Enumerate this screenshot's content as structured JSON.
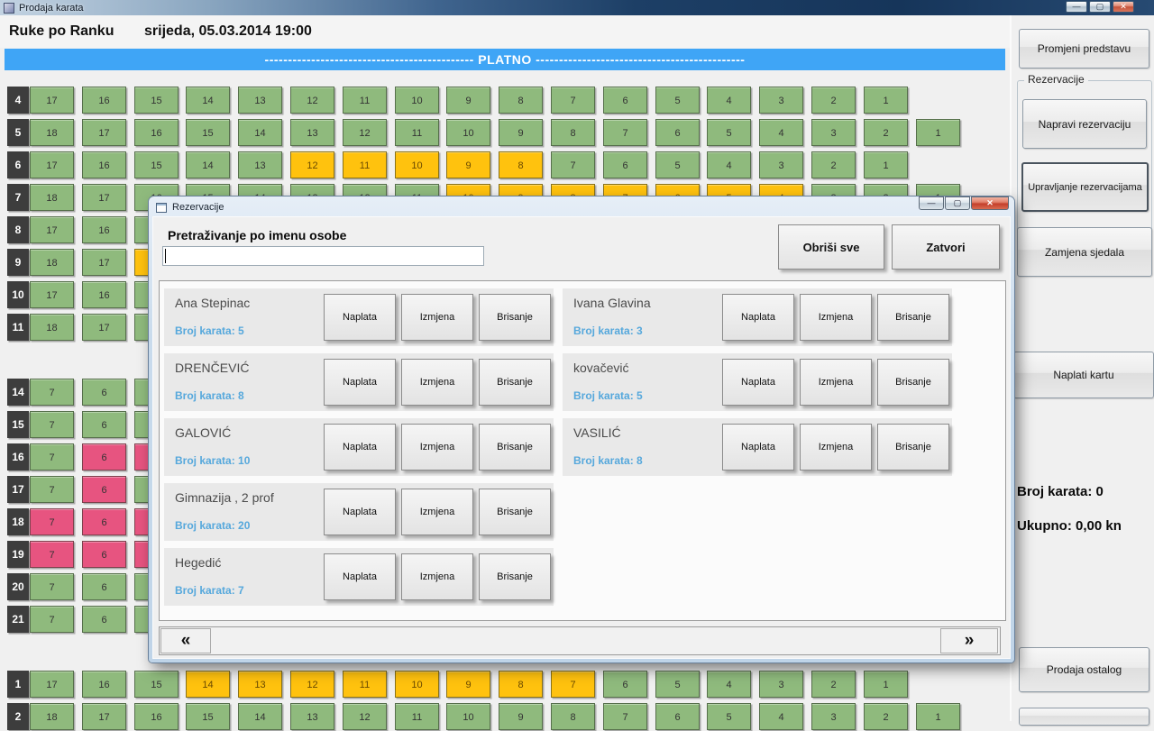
{
  "window": {
    "title": "Prodaja karata",
    "minimize_glyph": "—",
    "maximize_glyph": "▢",
    "close_glyph": "✕"
  },
  "header": {
    "show_title": "Ruke po Ranku",
    "show_datetime": "srijeda, 05.03.2014 19:00"
  },
  "screen_banner": {
    "text": "--------------------------------------------- PLATNO ---------------------------------------------",
    "color": "#3fa5f6"
  },
  "seat_colors": {
    "free": "#8fba7d",
    "reserved": "#ffc20e",
    "sold": "#e75480"
  },
  "seat_map": {
    "rows": [
      {
        "label": "4",
        "gap_before": false,
        "seats": [
          "17:g",
          "16:g",
          "15:g",
          "14:g",
          "13:g",
          "12:g",
          "11:g",
          "10:g",
          "9:g",
          "8:g",
          "7:g",
          "6:g",
          "5:g",
          "4:g",
          "3:g",
          "2:g",
          "1:g"
        ]
      },
      {
        "label": "5",
        "gap_before": false,
        "seats": [
          "18:g",
          "17:g",
          "16:g",
          "15:g",
          "14:g",
          "13:g",
          "12:g",
          "11:g",
          "10:g",
          "9:g",
          "8:g",
          "7:g",
          "6:g",
          "5:g",
          "4:g",
          "3:g",
          "2:g",
          "1:g"
        ]
      },
      {
        "label": "6",
        "gap_before": false,
        "seats": [
          "17:g",
          "16:g",
          "15:g",
          "14:g",
          "13:g",
          "12:y",
          "11:y",
          "10:y",
          "9:y",
          "8:y",
          "7:g",
          "6:g",
          "5:g",
          "4:g",
          "3:g",
          "2:g",
          "1:g"
        ]
      },
      {
        "label": "7",
        "gap_before": false,
        "seats": [
          "18:g",
          "17:g",
          "16:g",
          "15:g",
          "14:g",
          "13:g",
          "12:g",
          "11:g",
          "10:y",
          "9:y",
          "8:y",
          "7:y",
          "6:y",
          "5:y",
          "4:y",
          "3:g",
          "2:g",
          "1:g"
        ]
      },
      {
        "label": "8",
        "gap_before": false,
        "seats": [
          "17:g",
          "16:g",
          "15:g"
        ]
      },
      {
        "label": "9",
        "gap_before": false,
        "seats": [
          "18:g",
          "17:g",
          "16:y"
        ]
      },
      {
        "label": "10",
        "gap_before": false,
        "seats": [
          "17:g",
          "16:g",
          "15:g"
        ]
      },
      {
        "label": "11",
        "gap_before": false,
        "seats": [
          "18:g",
          "17:g",
          "16:g"
        ]
      },
      {
        "label": "14",
        "gap_before": true,
        "seats": [
          "7:g",
          "6:g",
          "5:g"
        ]
      },
      {
        "label": "15",
        "gap_before": false,
        "seats": [
          "7:g",
          "6:g",
          "5:g"
        ]
      },
      {
        "label": "16",
        "gap_before": false,
        "seats": [
          "7:g",
          "6:p",
          "5:p"
        ]
      },
      {
        "label": "17",
        "gap_before": false,
        "seats": [
          "7:g",
          "6:p",
          "5:g"
        ]
      },
      {
        "label": "18",
        "gap_before": false,
        "seats": [
          "7:p",
          "6:p",
          "5:p"
        ]
      },
      {
        "label": "19",
        "gap_before": false,
        "seats": [
          "7:p",
          "6:p",
          "5:p"
        ]
      },
      {
        "label": "20",
        "gap_before": false,
        "seats": [
          "7:g",
          "6:g",
          "5:g"
        ]
      },
      {
        "label": "21",
        "gap_before": false,
        "seats": [
          "7:g",
          "6:g",
          "5:g"
        ]
      },
      {
        "label": "1",
        "gap_before": true,
        "seats": [
          "17:g",
          "16:g",
          "15:g",
          "14:y",
          "13:y",
          "12:y",
          "11:y",
          "10:y",
          "9:y",
          "8:y",
          "7:y",
          "6:g",
          "5:g",
          "4:g",
          "3:g",
          "2:g",
          "1:g"
        ]
      },
      {
        "label": "2",
        "gap_before": false,
        "seats": [
          "18:g",
          "17:g",
          "16:g",
          "15:g",
          "14:g",
          "13:g",
          "12:g",
          "11:g",
          "10:g",
          "9:g",
          "8:g",
          "7:g",
          "6:g",
          "5:g",
          "4:g",
          "3:g",
          "2:g",
          "1:g"
        ]
      }
    ]
  },
  "sidebar": {
    "change_show": "Promjeni predstavu",
    "reservations_group": "Rezervacije",
    "make_reservation": "Napravi rezervaciju",
    "manage_reservations": "Upravljanje rezervacijama",
    "swap_seats": "Zamjena sjedala",
    "charge_ticket": "Naplati kartu",
    "ticket_count": "Broj karata: 0",
    "total": "Ukupno: 0,00 kn",
    "sell_other": "Prodaja ostalog"
  },
  "dialog": {
    "title": "Rezervacije",
    "minimize_glyph": "—",
    "maximize_glyph": "▢",
    "close_glyph": "✕",
    "search_label": "Pretraživanje po imenu osobe",
    "search_value": "",
    "clear_all": "Obriši sve",
    "close": "Zatvori",
    "prev": "«",
    "next": "»",
    "entry_buttons": [
      "Naplata",
      "Izmjena",
      "Brisanje"
    ],
    "entries_left": [
      {
        "name": "Ana Stepinac",
        "tickets": "Broj karata: 5"
      },
      {
        "name": "DRENČEVIĆ",
        "tickets": "Broj karata: 8"
      },
      {
        "name": "GALOVIĆ",
        "tickets": "Broj karata: 10"
      },
      {
        "name": "Gimnazija , 2 prof",
        "tickets": "Broj karata: 20"
      },
      {
        "name": "Hegedić",
        "tickets": "Broj karata: 7"
      }
    ],
    "entries_right": [
      {
        "name": "Ivana Glavina",
        "tickets": "Broj karata: 3"
      },
      {
        "name": "kovačević",
        "tickets": "Broj karata: 5"
      },
      {
        "name": "VASILIĆ",
        "tickets": "Broj karata: 8"
      }
    ]
  }
}
